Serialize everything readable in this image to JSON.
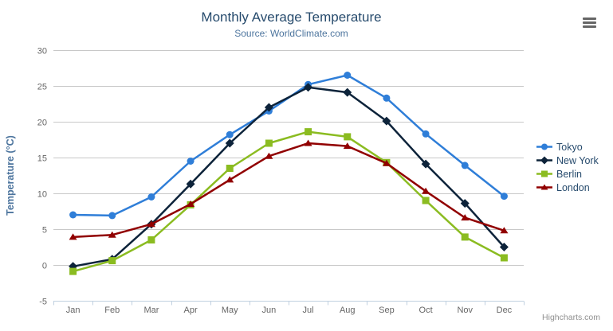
{
  "chart_data": {
    "type": "line",
    "title": "Monthly Average Temperature",
    "subtitle": "Source: WorldClimate.com",
    "categories": [
      "Jan",
      "Feb",
      "Mar",
      "Apr",
      "May",
      "Jun",
      "Jul",
      "Aug",
      "Sep",
      "Oct",
      "Nov",
      "Dec"
    ],
    "series": [
      {
        "name": "Tokyo",
        "color": "#2f7ed8",
        "marker": "circle",
        "values": [
          7.0,
          6.9,
          9.5,
          14.5,
          18.2,
          21.5,
          25.2,
          26.5,
          23.3,
          18.3,
          13.9,
          9.6
        ]
      },
      {
        "name": "New York",
        "color": "#0d233a",
        "marker": "diamond",
        "values": [
          -0.2,
          0.8,
          5.7,
          11.3,
          17.0,
          22.0,
          24.8,
          24.1,
          20.1,
          14.1,
          8.6,
          2.5
        ]
      },
      {
        "name": "Berlin",
        "color": "#8bbc21",
        "marker": "square",
        "values": [
          -0.9,
          0.6,
          3.5,
          8.4,
          13.5,
          17.0,
          18.6,
          17.9,
          14.3,
          9.0,
          3.9,
          1.0
        ]
      },
      {
        "name": "London",
        "color": "#910000",
        "marker": "triangle",
        "values": [
          3.9,
          4.2,
          5.7,
          8.5,
          11.9,
          15.2,
          17.0,
          16.6,
          14.2,
          10.3,
          6.6,
          4.8
        ]
      }
    ],
    "xlabel": "",
    "ylabel": "Temperature (°C)",
    "yticks": [
      30,
      25,
      20,
      15,
      10,
      5,
      0,
      -5
    ],
    "ylim": [
      -5,
      30
    ],
    "grid": true,
    "legend_position": "right"
  },
  "credits": "Highcharts.com",
  "icons": {
    "context_menu": "hamburger"
  },
  "colors": {
    "title_text": "#274b6d",
    "subtitle_text": "#4d759e",
    "axis_label": "#666666",
    "axis_title": "#4d759e",
    "grid_line": "#c8c8c8",
    "axis_line": "#c0d0e0",
    "legend_text": "#274b6d",
    "credits_text": "#909090",
    "menu_icon": "#666666"
  }
}
